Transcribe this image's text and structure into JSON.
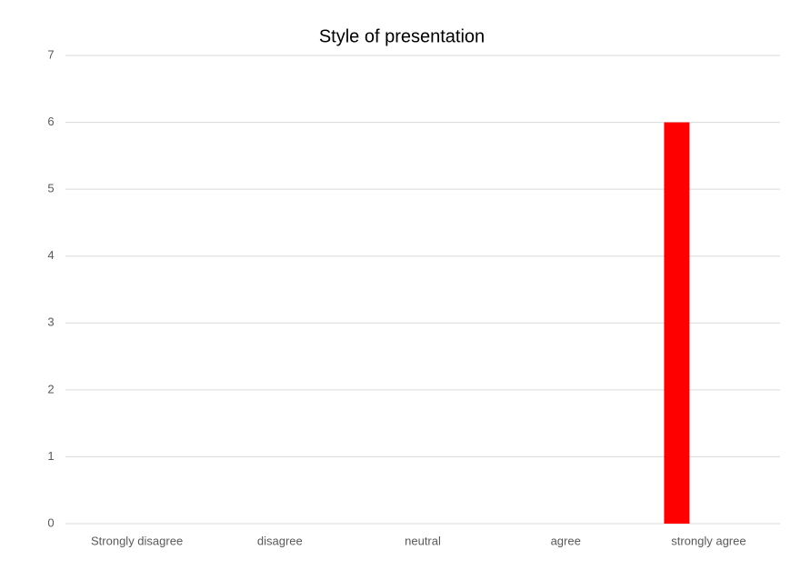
{
  "chart_data": {
    "type": "bar",
    "title": "Style of presentation",
    "categories": [
      "Strongly disagree",
      "disagree",
      "neutral",
      "agree",
      "strongly agree"
    ],
    "values": [
      0,
      0,
      0,
      0,
      6
    ],
    "color": "#ff0000",
    "ylim": [
      0,
      7
    ],
    "yticks": [
      0,
      1,
      2,
      3,
      4,
      5,
      6,
      7
    ],
    "grid": true
  }
}
